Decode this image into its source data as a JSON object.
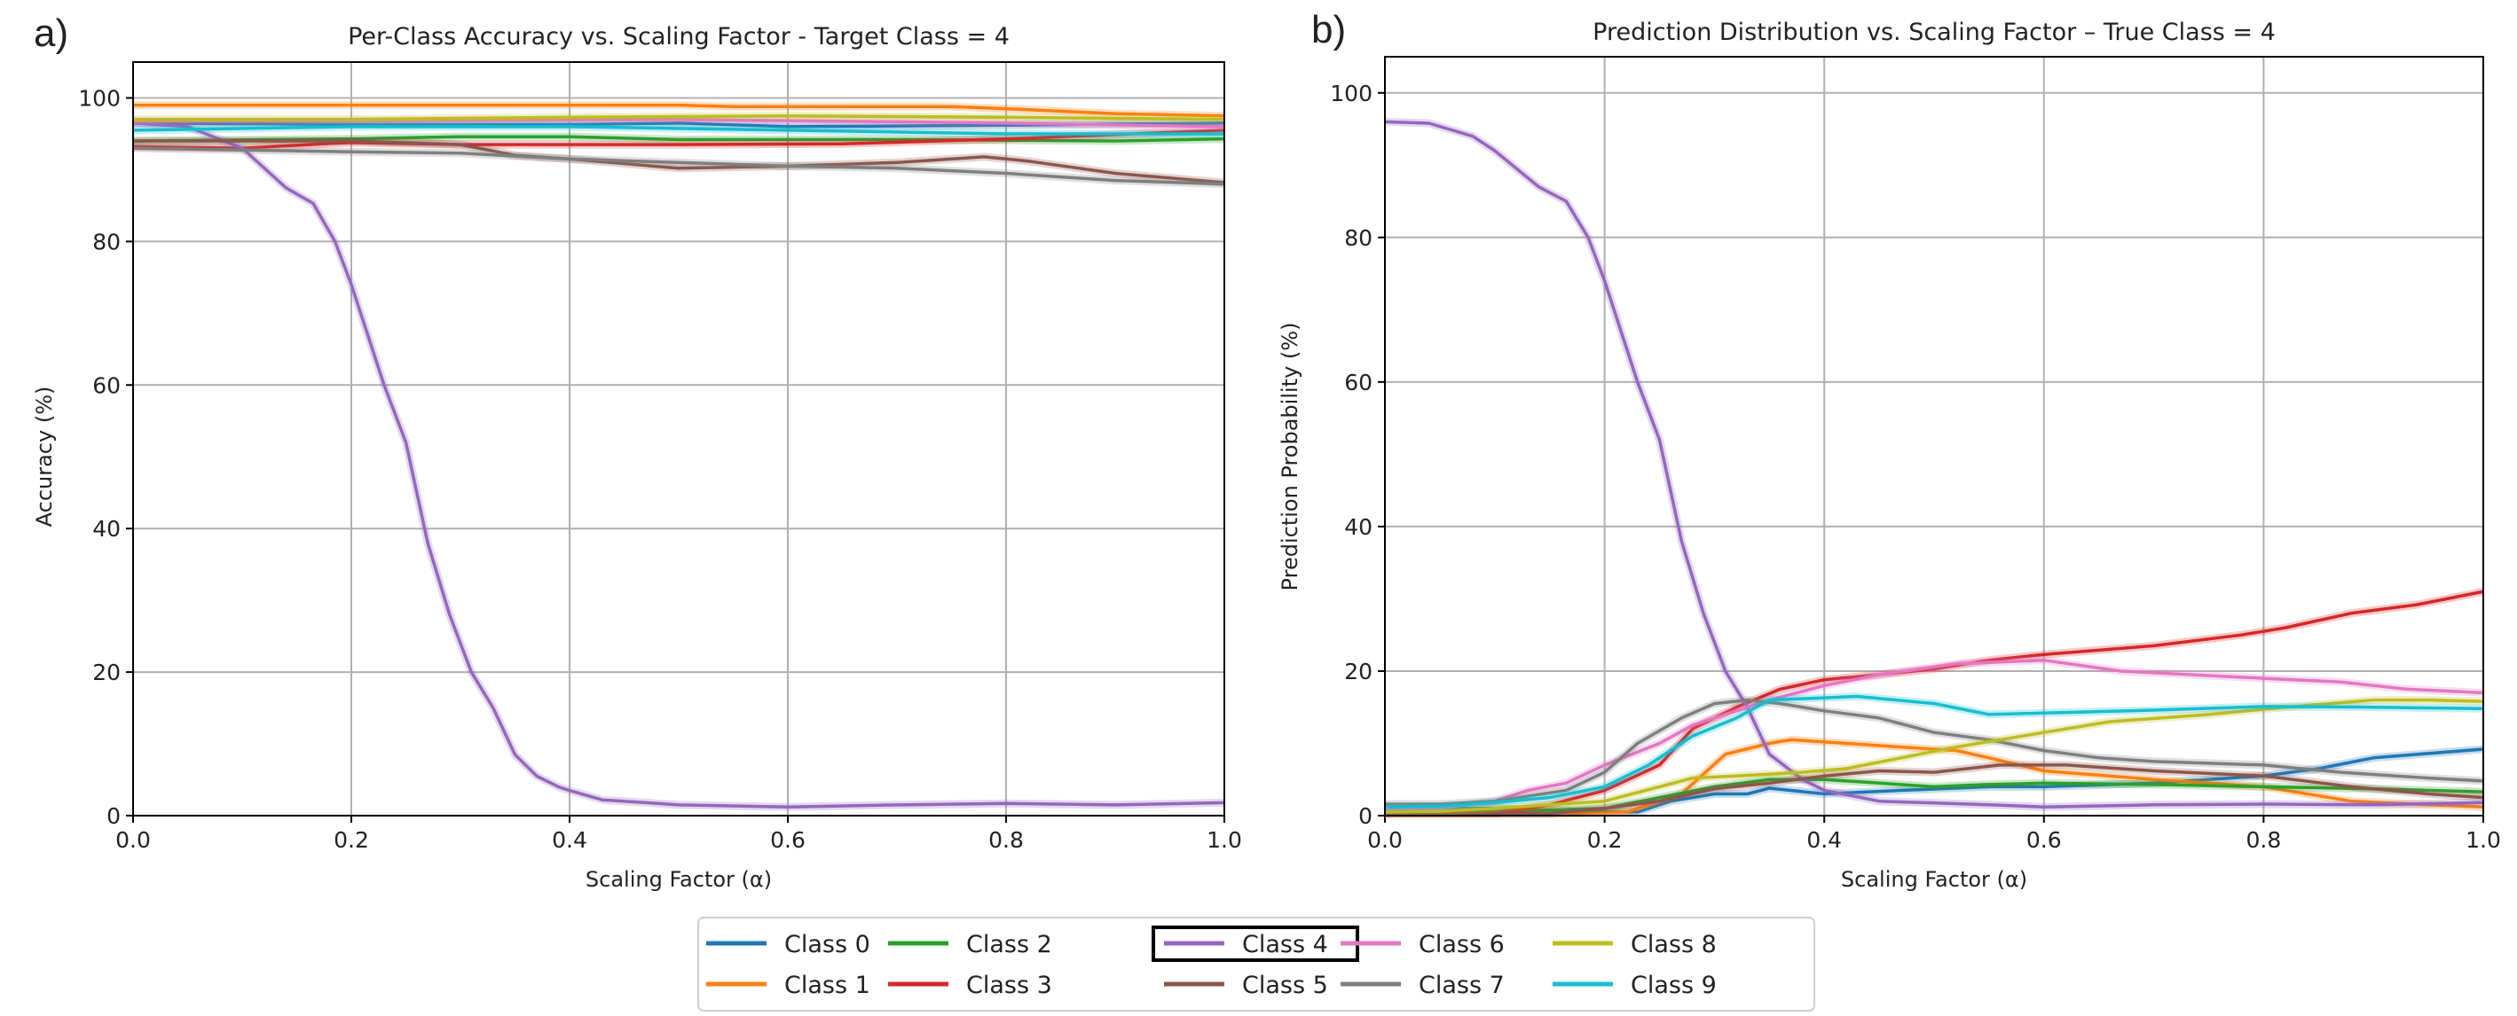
{
  "colors": {
    "Class 0": "#1f77b4",
    "Class 1": "#ff7f0e",
    "Class 2": "#2ca02c",
    "Class 3": "#d62728",
    "Class 4": "#9467bd",
    "Class 5": "#8c564b",
    "Class 6": "#e377c2",
    "Class 7": "#7f7f7f",
    "Class 8": "#bcbd22",
    "Class 9": "#17becf"
  },
  "legend": {
    "entries": [
      "Class 0",
      "Class 1",
      "Class 2",
      "Class 3",
      "Class 4",
      "Class 5",
      "Class 6",
      "Class 7",
      "Class 8",
      "Class 9"
    ],
    "highlighted": "Class 4",
    "placement": "bottom-center"
  },
  "chart_data": [
    {
      "panel_label": "a)",
      "type": "line",
      "title": "Per-Class Accuracy vs. Scaling Factor - Target Class = 4",
      "xlabel": "Scaling Factor (α)",
      "ylabel": "Accuracy (%)",
      "xlim": [
        0,
        1
      ],
      "ylim": [
        0,
        105
      ],
      "xticks": [
        "0.0",
        "0.2",
        "0.4",
        "0.6",
        "0.8",
        "1.0"
      ],
      "yticks": [
        "0",
        "20",
        "40",
        "60",
        "80",
        "100"
      ],
      "grid": true,
      "series": [
        {
          "name": "Class 0",
          "x": [
            0,
            0.2,
            0.4,
            0.5,
            0.6,
            0.8,
            1.0
          ],
          "y": [
            96.5,
            96.3,
            96.3,
            96.5,
            96,
            96.2,
            96.5
          ]
        },
        {
          "name": "Class 1",
          "x": [
            0,
            0.2,
            0.5,
            0.55,
            0.75,
            0.8,
            0.9,
            1.0
          ],
          "y": [
            99,
            99,
            99,
            98.8,
            98.8,
            98.5,
            97.8,
            97.5
          ]
        },
        {
          "name": "Class 2",
          "x": [
            0,
            0.2,
            0.3,
            0.4,
            0.5,
            0.7,
            0.9,
            1.0
          ],
          "y": [
            94,
            94.3,
            94.6,
            94.6,
            94.2,
            94.2,
            94,
            94.3
          ]
        },
        {
          "name": "Class 3",
          "x": [
            0,
            0.1,
            0.2,
            0.3,
            0.5,
            0.65,
            0.8,
            1.0
          ],
          "y": [
            93.2,
            93,
            93.8,
            93.5,
            93.5,
            93.6,
            94.3,
            95.5
          ]
        },
        {
          "name": "Class 4",
          "x": [
            0,
            0.05,
            0.1,
            0.14,
            0.165,
            0.185,
            0.2,
            0.23,
            0.25,
            0.27,
            0.29,
            0.31,
            0.33,
            0.35,
            0.37,
            0.39,
            0.4,
            0.43,
            0.47,
            0.5,
            0.6,
            0.7,
            0.8,
            0.9,
            1.0
          ],
          "y": [
            96.5,
            96,
            93,
            87.5,
            85.3,
            80,
            74,
            60,
            52,
            38,
            28,
            20,
            15,
            8.5,
            5.5,
            4,
            3.5,
            2.2,
            1.8,
            1.5,
            1.2,
            1.5,
            1.7,
            1.5,
            1.8
          ]
        },
        {
          "name": "Class 5",
          "x": [
            0,
            0.2,
            0.3,
            0.35,
            0.4,
            0.5,
            0.6,
            0.7,
            0.78,
            0.82,
            0.9,
            1.0
          ],
          "y": [
            94,
            94,
            93.5,
            92,
            91.5,
            90.2,
            90.5,
            91,
            91.8,
            91.2,
            89.5,
            88.2
          ]
        },
        {
          "name": "Class 6",
          "x": [
            0,
            0.2,
            0.5,
            0.8,
            1.0
          ],
          "y": [
            96.8,
            96.8,
            97,
            96.5,
            96
          ]
        },
        {
          "name": "Class 7",
          "x": [
            0,
            0.2,
            0.3,
            0.4,
            0.5,
            0.6,
            0.7,
            0.8,
            0.9,
            1.0
          ],
          "y": [
            93,
            92.5,
            92.3,
            91.5,
            91,
            90.5,
            90.2,
            89.5,
            88.5,
            88
          ]
        },
        {
          "name": "Class 8",
          "x": [
            0,
            0.2,
            0.4,
            0.6,
            0.8,
            1.0
          ],
          "y": [
            97,
            97,
            97.3,
            97.5,
            97.3,
            97
          ]
        },
        {
          "name": "Class 9",
          "x": [
            0,
            0.2,
            0.4,
            0.6,
            0.8,
            1.0
          ],
          "y": [
            95.5,
            96,
            96,
            95.5,
            95,
            95
          ]
        }
      ]
    },
    {
      "panel_label": "b)",
      "type": "line",
      "title": "Prediction Distribution vs. Scaling Factor – True Class = 4",
      "xlabel": "Scaling Factor (α)",
      "ylabel": "Prediction Probability (%)",
      "xlim": [
        0,
        1
      ],
      "ylim": [
        0,
        105
      ],
      "xticks": [
        "0.0",
        "0.2",
        "0.4",
        "0.6",
        "0.8",
        "1.0"
      ],
      "yticks": [
        "0",
        "20",
        "40",
        "60",
        "80",
        "100"
      ],
      "grid": true,
      "series": [
        {
          "name": "Class 0",
          "x": [
            0,
            0.1,
            0.2,
            0.23,
            0.26,
            0.3,
            0.33,
            0.35,
            0.4,
            0.47,
            0.55,
            0.6,
            0.7,
            0.8,
            0.85,
            0.9,
            1.0
          ],
          "y": [
            1,
            1,
            0.5,
            0.5,
            2,
            3,
            3,
            3.8,
            3,
            3.5,
            4,
            4,
            4.5,
            5.5,
            6.5,
            8,
            9.2
          ]
        },
        {
          "name": "Class 1",
          "x": [
            0,
            0.15,
            0.22,
            0.27,
            0.31,
            0.35,
            0.37,
            0.42,
            0.47,
            0.52,
            0.55,
            0.6,
            0.7,
            0.8,
            0.88,
            0.95,
            1.0
          ],
          "y": [
            0.2,
            0.2,
            0.5,
            3,
            8.5,
            10,
            10.5,
            10,
            9.5,
            9,
            8,
            6.2,
            5,
            4,
            2,
            1.5,
            1.2
          ]
        },
        {
          "name": "Class 2",
          "x": [
            0,
            0.1,
            0.2,
            0.25,
            0.3,
            0.35,
            0.4,
            0.45,
            0.5,
            0.55,
            0.6,
            0.7,
            0.8,
            0.9,
            1.0
          ],
          "y": [
            0.5,
            0.5,
            1,
            2.5,
            4,
            5,
            5,
            4.5,
            4,
            4.3,
            4.5,
            4.3,
            4,
            3.7,
            3.3
          ]
        },
        {
          "name": "Class 3",
          "x": [
            0,
            0.1,
            0.15,
            0.2,
            0.25,
            0.28,
            0.32,
            0.36,
            0.4,
            0.45,
            0.5,
            0.55,
            0.6,
            0.7,
            0.78,
            0.82,
            0.88,
            0.94,
            1.0
          ],
          "y": [
            0.3,
            0.3,
            1.5,
            3.5,
            7,
            12,
            15,
            17.5,
            18.8,
            19.5,
            20.3,
            21.5,
            22.3,
            23.5,
            25,
            26,
            28,
            29.2,
            31
          ]
        },
        {
          "name": "Class 4",
          "x": [
            0,
            0.04,
            0.08,
            0.1,
            0.14,
            0.165,
            0.185,
            0.2,
            0.23,
            0.25,
            0.27,
            0.29,
            0.31,
            0.33,
            0.35,
            0.38,
            0.4,
            0.45,
            0.55,
            0.6,
            0.7,
            0.8,
            0.9,
            1.0
          ],
          "y": [
            96,
            95.8,
            94,
            92,
            87,
            85,
            80,
            74,
            60,
            52,
            38,
            28,
            20,
            15,
            8.5,
            5,
            3.5,
            2,
            1.5,
            1.2,
            1.5,
            1.6,
            1.5,
            1.8
          ]
        },
        {
          "name": "Class 5",
          "x": [
            0,
            0.15,
            0.2,
            0.25,
            0.3,
            0.35,
            0.4,
            0.45,
            0.5,
            0.56,
            0.62,
            0.7,
            0.8,
            0.88,
            0.95,
            1.0
          ],
          "y": [
            0.3,
            0.3,
            1,
            2,
            3.7,
            4.5,
            5.5,
            6.2,
            6,
            7,
            7,
            6.2,
            5.5,
            4,
            3,
            2.5
          ]
        },
        {
          "name": "Class 6",
          "x": [
            0,
            0.05,
            0.1,
            0.13,
            0.165,
            0.2,
            0.25,
            0.28,
            0.31,
            0.35,
            0.4,
            0.45,
            0.52,
            0.6,
            0.67,
            0.8,
            0.87,
            0.93,
            1.0
          ],
          "y": [
            0.8,
            1,
            2,
            3.5,
            4.5,
            7,
            10,
            12.5,
            14,
            16,
            18,
            19.5,
            21,
            21.5,
            20,
            19,
            18.5,
            17.5,
            17
          ]
        },
        {
          "name": "Class 7",
          "x": [
            0,
            0.05,
            0.1,
            0.165,
            0.2,
            0.23,
            0.27,
            0.3,
            0.33,
            0.36,
            0.4,
            0.45,
            0.5,
            0.55,
            0.6,
            0.65,
            0.7,
            0.8,
            0.87,
            0.95,
            1.0
          ],
          "y": [
            1.6,
            1.6,
            2,
            3.5,
            6,
            10,
            13.5,
            15.5,
            16,
            15.5,
            14.5,
            13.5,
            11.5,
            10.5,
            9,
            8,
            7.5,
            7,
            6,
            5.2,
            4.8
          ]
        },
        {
          "name": "Class 8",
          "x": [
            0,
            0.05,
            0.1,
            0.2,
            0.25,
            0.28,
            0.32,
            0.38,
            0.42,
            0.47,
            0.52,
            0.6,
            0.66,
            0.75,
            0.82,
            0.9,
            0.95,
            1.0
          ],
          "y": [
            0.5,
            0.6,
            1,
            2,
            4,
            5.2,
            5.5,
            6,
            6.5,
            8,
            9.5,
            11.5,
            13,
            14,
            15,
            16,
            16,
            15.8
          ]
        },
        {
          "name": "Class 9",
          "x": [
            0,
            0.05,
            0.1,
            0.15,
            0.2,
            0.24,
            0.28,
            0.32,
            0.35,
            0.4,
            0.43,
            0.5,
            0.55,
            0.6,
            0.7,
            0.8,
            0.9,
            1.0
          ],
          "y": [
            1.2,
            1.3,
            1.8,
            2.5,
            4,
            7,
            11,
            13.5,
            16,
            16.3,
            16.5,
            15.5,
            14,
            14.2,
            14.6,
            15.1,
            15,
            14.8
          ]
        }
      ]
    }
  ]
}
